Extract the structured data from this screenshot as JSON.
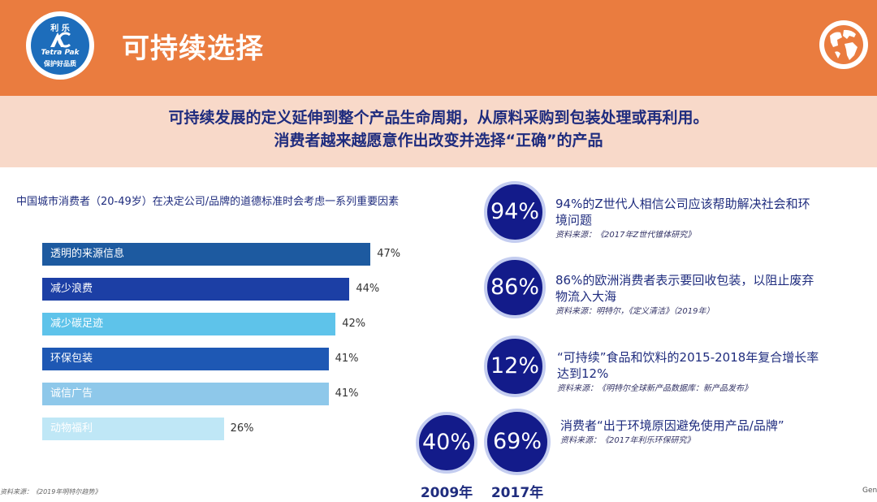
{
  "header": {
    "title": "可持续选择",
    "logo_top": "利 乐",
    "logo_name": "Tetra Pak",
    "logo_bottom": "保护好品质",
    "brand_color": "#ea7c3f",
    "globe_icon": "globe-icon"
  },
  "subtitle": {
    "line1": "可持续发展的定义延伸到整个产品生命周期，从原料采购到包装处理或再利用。",
    "line2": "消费者越来越愿意作出改变并选择“正确”的产品",
    "band_color": "#f8d9c9"
  },
  "chart_data": {
    "type": "bar",
    "orientation": "horizontal",
    "title": "中国城市消费者（20-49岁）在决定公司/品牌的道德标准时会考虑一系列重要因素",
    "categories": [
      "透明的来源信息",
      "减少浪费",
      "减少碳足迹",
      "环保包装",
      "诚信广告",
      "动物福利"
    ],
    "values": [
      47,
      44,
      42,
      41,
      41,
      26
    ],
    "value_labels": [
      "47%",
      "44%",
      "42%",
      "41%",
      "41%",
      "26%"
    ],
    "colors": [
      "#1d5aa0",
      "#1c3fa5",
      "#5ec3ea",
      "#1e58b4",
      "#8ec8ea",
      "#bfe7f6"
    ],
    "xlim": [
      0,
      100
    ],
    "grid": false
  },
  "source_note": "资料来源：《2019年明特尔趋势》",
  "right_edge_text": "Gen",
  "stats": [
    {
      "percent": "94%",
      "text": "94%的Z世代人相信公司应该帮助解决社会和环境问题",
      "source": "资料来源：《2017年Z世代锥体研究》"
    },
    {
      "percent": "86%",
      "text": "86%的欧洲消费者表示要回收包装，以阻止废弃物流入大海",
      "source": "资料来源：明特尔，《定义清洁》（2019年）"
    },
    {
      "percent": "12%",
      "text": "“可持续”食品和饮料的2015-2018年复合增长率达到12%",
      "source": "资料来源：《明特尔全球新产品数据库：新产品发布》"
    },
    {
      "percent": "69%",
      "text": "消费者“出于环境原因避免使用产品/品牌”",
      "source": "资料来源：《2017年利乐环保研究》"
    }
  ],
  "comparison": {
    "left_percent": "40%",
    "left_year": "2009年",
    "right_year": "2017年"
  },
  "circle_color": "#131b8a"
}
